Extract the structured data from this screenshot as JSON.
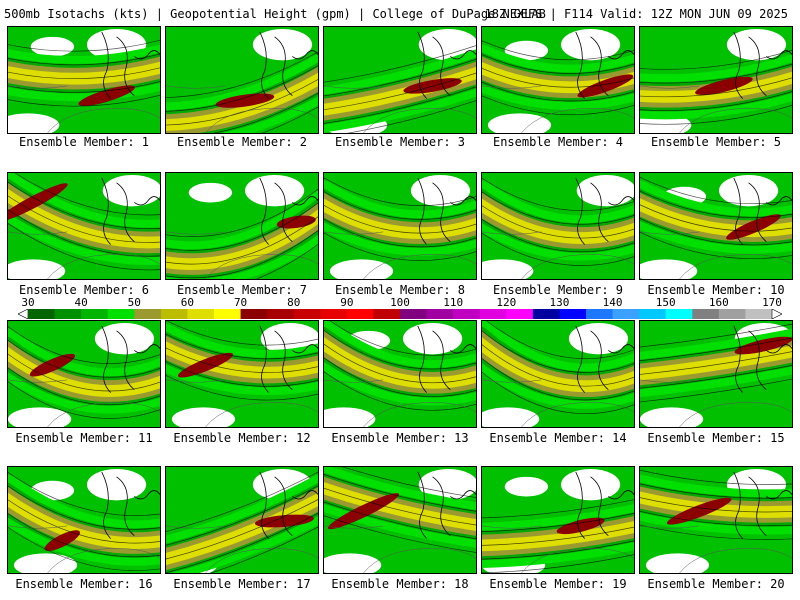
{
  "header": {
    "left": "500mb Isotachs (kts) | Geopotential Height (gpm) | College of DuPage NEXLAB",
    "right": "18Z GEFS | F114 Valid: 12Z MON JUN 09 2025"
  },
  "colorbar": {
    "ticks": [
      "30",
      "40",
      "50",
      "60",
      "70",
      "80",
      "90",
      "100",
      "110",
      "120",
      "130",
      "140",
      "150",
      "160",
      "170"
    ],
    "colors": [
      "#006400",
      "#009000",
      "#00b400",
      "#00e000",
      "#9a9a30",
      "#bcbc00",
      "#dede00",
      "#ffff00",
      "#8b0000",
      "#a80000",
      "#c80000",
      "#e60000",
      "#ff0000",
      "#c00000",
      "#800080",
      "#a000a0",
      "#c000c0",
      "#e000e0",
      "#ff00ff",
      "#0000a0",
      "#0000ff",
      "#1e78ff",
      "#3ca0ff",
      "#00c8ff",
      "#00ffff",
      "#808080",
      "#a0a0a0",
      "#c0c0c0"
    ]
  },
  "members": [
    {
      "label": "Ensemble Member: 1"
    },
    {
      "label": "Ensemble Member: 2"
    },
    {
      "label": "Ensemble Member: 3"
    },
    {
      "label": "Ensemble Member: 4"
    },
    {
      "label": "Ensemble Member: 5"
    },
    {
      "label": "Ensemble Member: 6"
    },
    {
      "label": "Ensemble Member: 7"
    },
    {
      "label": "Ensemble Member: 8"
    },
    {
      "label": "Ensemble Member: 9"
    },
    {
      "label": "Ensemble Member: 10"
    },
    {
      "label": "Ensemble Member: 11"
    },
    {
      "label": "Ensemble Member: 12"
    },
    {
      "label": "Ensemble Member: 13"
    },
    {
      "label": "Ensemble Member: 14"
    },
    {
      "label": "Ensemble Member: 15"
    },
    {
      "label": "Ensemble Member: 16"
    },
    {
      "label": "Ensemble Member: 17"
    },
    {
      "label": "Ensemble Member: 18"
    },
    {
      "label": "Ensemble Member: 19"
    },
    {
      "label": "Ensemble Member: 20"
    }
  ]
}
